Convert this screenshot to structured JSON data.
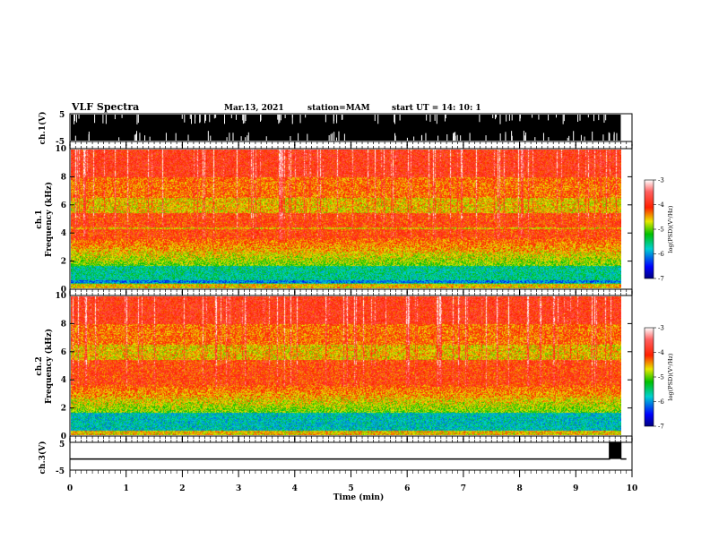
{
  "header": {
    "title": "VLF Spectra",
    "date": "Mar.13, 2021",
    "station": "station=MAM",
    "start": "start  UT =   14: 10: 1"
  },
  "chart_data": [
    {
      "type": "line",
      "panel": "ch1-waveform",
      "ylabel": "ch.1(V)",
      "ylim": [
        -5,
        5
      ],
      "yticks": [
        "5",
        "-5"
      ],
      "xlim": [
        0,
        10
      ],
      "description_series": "dense broadband voltage trace saturating panel between 0 and ~9.8 min"
    },
    {
      "type": "heatmap",
      "panel": "ch1-spectrogram",
      "ylabel": "ch.1\nFrequency (kHz)",
      "ylabel_top": "ch.1",
      "ylabel_bottom": "Frequency (kHz)",
      "ylim": [
        0,
        10
      ],
      "yticks": [
        "0",
        "2",
        "4",
        "6",
        "8",
        "10"
      ],
      "xlim": [
        0,
        9.8
      ],
      "colorbar": {
        "label": "log(PSD)(V²/Hz)",
        "ticks": [
          "-3",
          "-4",
          "-5",
          "-6",
          "-7"
        ],
        "range": [
          -7,
          -3
        ]
      }
    },
    {
      "type": "heatmap",
      "panel": "ch2-spectrogram",
      "ylabel_top": "ch.2",
      "ylabel_bottom": "Frequency (kHz)",
      "ylim": [
        0,
        10
      ],
      "yticks": [
        "0",
        "2",
        "4",
        "6",
        "8",
        "10"
      ],
      "xlim": [
        0,
        9.8
      ],
      "colorbar": {
        "label": "log(PSD)(V²/Hz)",
        "ticks": [
          "-3",
          "-4",
          "-5",
          "-6",
          "-7"
        ],
        "range": [
          -7,
          -3
        ]
      }
    },
    {
      "type": "line",
      "panel": "ch3-waveform",
      "ylabel": "ch.3(V)",
      "ylim": [
        -5,
        5
      ],
      "yticks": [
        "5",
        "-5"
      ],
      "xlim": [
        0,
        10
      ],
      "x": [
        0,
        9.6,
        9.6,
        9.8,
        9.8
      ],
      "y": [
        -1,
        -1,
        5,
        5,
        -1
      ]
    }
  ],
  "xaxis": {
    "label": "Time  (min)",
    "ticks": [
      "0",
      "1",
      "2",
      "3",
      "4",
      "5",
      "6",
      "7",
      "8",
      "9",
      "10"
    ],
    "range": [
      0,
      10
    ]
  },
  "colors": {
    "background": "#ffffff",
    "axes": "#000000",
    "spectrogram_low": "#0000ff",
    "spectrogram_mid": "#00c000",
    "spectrogram_high": "#ff0000"
  }
}
